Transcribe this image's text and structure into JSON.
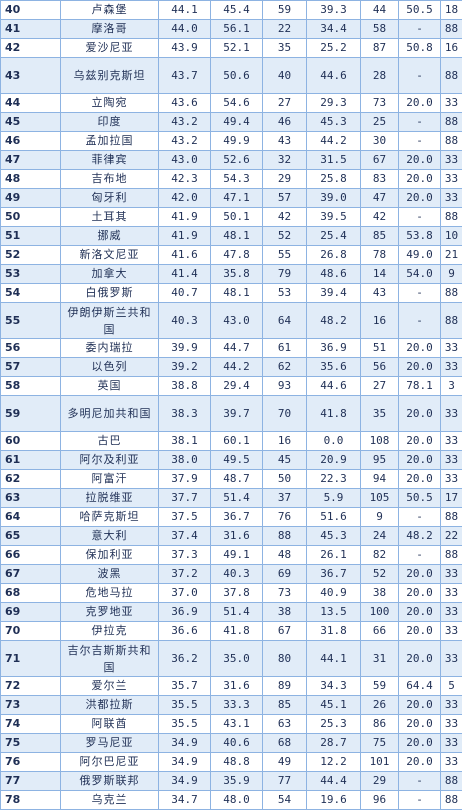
{
  "rows": [
    {
      "rank": "40",
      "name": "卢森堡",
      "c1": "44.1",
      "c2": "45.4",
      "c3": "59",
      "c4": "39.3",
      "c5": "44",
      "c6": "50.5",
      "c7": "18"
    },
    {
      "rank": "41",
      "name": "摩洛哥",
      "c1": "44.0",
      "c2": "56.1",
      "c3": "22",
      "c4": "34.4",
      "c5": "58",
      "c6": "-",
      "c7": "88"
    },
    {
      "rank": "42",
      "name": "爱沙尼亚",
      "c1": "43.9",
      "c2": "52.1",
      "c3": "35",
      "c4": "25.2",
      "c5": "87",
      "c6": "50.8",
      "c7": "16"
    },
    {
      "rank": "43",
      "name": "乌兹别克斯坦",
      "c1": "43.7",
      "c2": "50.6",
      "c3": "40",
      "c4": "44.6",
      "c5": "28",
      "c6": "-",
      "c7": "88",
      "tall": true
    },
    {
      "rank": "44",
      "name": "立陶宛",
      "c1": "43.6",
      "c2": "54.6",
      "c3": "27",
      "c4": "29.3",
      "c5": "73",
      "c6": "20.0",
      "c7": "33"
    },
    {
      "rank": "45",
      "name": "印度",
      "c1": "43.2",
      "c2": "49.4",
      "c3": "46",
      "c4": "45.3",
      "c5": "25",
      "c6": "-",
      "c7": "88"
    },
    {
      "rank": "46",
      "name": "孟加拉国",
      "c1": "43.2",
      "c2": "49.9",
      "c3": "43",
      "c4": "44.2",
      "c5": "30",
      "c6": "-",
      "c7": "88"
    },
    {
      "rank": "47",
      "name": "菲律宾",
      "c1": "43.0",
      "c2": "52.6",
      "c3": "32",
      "c4": "31.5",
      "c5": "67",
      "c6": "20.0",
      "c7": "33"
    },
    {
      "rank": "48",
      "name": "吉布地",
      "c1": "42.3",
      "c2": "54.3",
      "c3": "29",
      "c4": "25.8",
      "c5": "83",
      "c6": "20.0",
      "c7": "33"
    },
    {
      "rank": "49",
      "name": "匈牙利",
      "c1": "42.0",
      "c2": "47.1",
      "c3": "57",
      "c4": "39.0",
      "c5": "47",
      "c6": "20.0",
      "c7": "33"
    },
    {
      "rank": "50",
      "name": "土耳其",
      "c1": "41.9",
      "c2": "50.1",
      "c3": "42",
      "c4": "39.5",
      "c5": "42",
      "c6": "-",
      "c7": "88"
    },
    {
      "rank": "51",
      "name": "挪威",
      "c1": "41.9",
      "c2": "48.1",
      "c3": "52",
      "c4": "25.4",
      "c5": "85",
      "c6": "53.8",
      "c7": "10"
    },
    {
      "rank": "52",
      "name": "新洛文尼亚",
      "c1": "41.6",
      "c2": "47.8",
      "c3": "55",
      "c4": "26.8",
      "c5": "78",
      "c6": "49.0",
      "c7": "21"
    },
    {
      "rank": "53",
      "name": "加拿大",
      "c1": "41.4",
      "c2": "35.8",
      "c3": "79",
      "c4": "48.6",
      "c5": "14",
      "c6": "54.0",
      "c7": "9"
    },
    {
      "rank": "54",
      "name": "白俄罗斯",
      "c1": "40.7",
      "c2": "48.1",
      "c3": "53",
      "c4": "39.4",
      "c5": "43",
      "c6": "-",
      "c7": "88"
    },
    {
      "rank": "55",
      "name": "伊朗伊斯兰共和国",
      "c1": "40.3",
      "c2": "43.0",
      "c3": "64",
      "c4": "48.2",
      "c5": "16",
      "c6": "-",
      "c7": "88",
      "tall": true
    },
    {
      "rank": "56",
      "name": "委内瑞拉",
      "c1": "39.9",
      "c2": "44.7",
      "c3": "61",
      "c4": "36.9",
      "c5": "51",
      "c6": "20.0",
      "c7": "33"
    },
    {
      "rank": "57",
      "name": "以色列",
      "c1": "39.2",
      "c2": "44.2",
      "c3": "62",
      "c4": "35.6",
      "c5": "56",
      "c6": "20.0",
      "c7": "33"
    },
    {
      "rank": "58",
      "name": "英国",
      "c1": "38.8",
      "c2": "29.4",
      "c3": "93",
      "c4": "44.6",
      "c5": "27",
      "c6": "78.1",
      "c7": "3"
    },
    {
      "rank": "59",
      "name": "多明尼加共和国",
      "c1": "38.3",
      "c2": "39.7",
      "c3": "70",
      "c4": "41.8",
      "c5": "35",
      "c6": "20.0",
      "c7": "33",
      "tall": true
    },
    {
      "rank": "60",
      "name": "古巴",
      "c1": "38.1",
      "c2": "60.1",
      "c3": "16",
      "c4": "0.0",
      "c5": "108",
      "c6": "20.0",
      "c7": "33"
    },
    {
      "rank": "61",
      "name": "阿尔及利亚",
      "c1": "38.0",
      "c2": "49.5",
      "c3": "45",
      "c4": "20.9",
      "c5": "95",
      "c6": "20.0",
      "c7": "33"
    },
    {
      "rank": "62",
      "name": "阿富汗",
      "c1": "37.9",
      "c2": "48.7",
      "c3": "50",
      "c4": "22.3",
      "c5": "94",
      "c6": "20.0",
      "c7": "33"
    },
    {
      "rank": "63",
      "name": "拉脱维亚",
      "c1": "37.7",
      "c2": "51.4",
      "c3": "37",
      "c4": "5.9",
      "c5": "105",
      "c6": "50.5",
      "c7": "17"
    },
    {
      "rank": "64",
      "name": "哈萨克斯坦",
      "c1": "37.5",
      "c2": "36.7",
      "c3": "76",
      "c4": "51.6",
      "c5": "9",
      "c6": "-",
      "c7": "88"
    },
    {
      "rank": "65",
      "name": "意大利",
      "c1": "37.4",
      "c2": "31.6",
      "c3": "88",
      "c4": "45.3",
      "c5": "24",
      "c6": "48.2",
      "c7": "22"
    },
    {
      "rank": "66",
      "name": "保加利亚",
      "c1": "37.3",
      "c2": "49.1",
      "c3": "48",
      "c4": "26.1",
      "c5": "82",
      "c6": "-",
      "c7": "88"
    },
    {
      "rank": "67",
      "name": "波黑",
      "c1": "37.2",
      "c2": "40.3",
      "c3": "69",
      "c4": "36.7",
      "c5": "52",
      "c6": "20.0",
      "c7": "33"
    },
    {
      "rank": "68",
      "name": "危地马拉",
      "c1": "37.0",
      "c2": "37.8",
      "c3": "73",
      "c4": "40.9",
      "c5": "38",
      "c6": "20.0",
      "c7": "33"
    },
    {
      "rank": "69",
      "name": "克罗地亚",
      "c1": "36.9",
      "c2": "51.4",
      "c3": "38",
      "c4": "13.5",
      "c5": "100",
      "c6": "20.0",
      "c7": "33"
    },
    {
      "rank": "70",
      "name": "伊拉克",
      "c1": "36.6",
      "c2": "41.8",
      "c3": "67",
      "c4": "31.8",
      "c5": "66",
      "c6": "20.0",
      "c7": "33"
    },
    {
      "rank": "71",
      "name": "吉尔吉斯斯共和国",
      "c1": "36.2",
      "c2": "35.0",
      "c3": "80",
      "c4": "44.1",
      "c5": "31",
      "c6": "20.0",
      "c7": "33",
      "tall": true
    },
    {
      "rank": "72",
      "name": "爱尔兰",
      "c1": "35.7",
      "c2": "31.6",
      "c3": "89",
      "c4": "34.3",
      "c5": "59",
      "c6": "64.4",
      "c7": "5"
    },
    {
      "rank": "73",
      "name": "洪都拉斯",
      "c1": "35.5",
      "c2": "33.3",
      "c3": "85",
      "c4": "45.1",
      "c5": "26",
      "c6": "20.0",
      "c7": "33"
    },
    {
      "rank": "74",
      "name": "阿联酋",
      "c1": "35.5",
      "c2": "43.1",
      "c3": "63",
      "c4": "25.3",
      "c5": "86",
      "c6": "20.0",
      "c7": "33"
    },
    {
      "rank": "75",
      "name": "罗马尼亚",
      "c1": "34.9",
      "c2": "40.6",
      "c3": "68",
      "c4": "28.7",
      "c5": "75",
      "c6": "20.0",
      "c7": "33"
    },
    {
      "rank": "76",
      "name": "阿尔巴尼亚",
      "c1": "34.9",
      "c2": "48.8",
      "c3": "49",
      "c4": "12.2",
      "c5": "101",
      "c6": "20.0",
      "c7": "33"
    },
    {
      "rank": "77",
      "name": "俄罗斯联邦",
      "c1": "34.9",
      "c2": "35.9",
      "c3": "77",
      "c4": "44.4",
      "c5": "29",
      "c6": "-",
      "c7": "88"
    },
    {
      "rank": "78",
      "name": "乌克兰",
      "c1": "34.7",
      "c2": "48.0",
      "c3": "54",
      "c4": "19.6",
      "c5": "96",
      "c6": "-",
      "c7": "88"
    }
  ]
}
